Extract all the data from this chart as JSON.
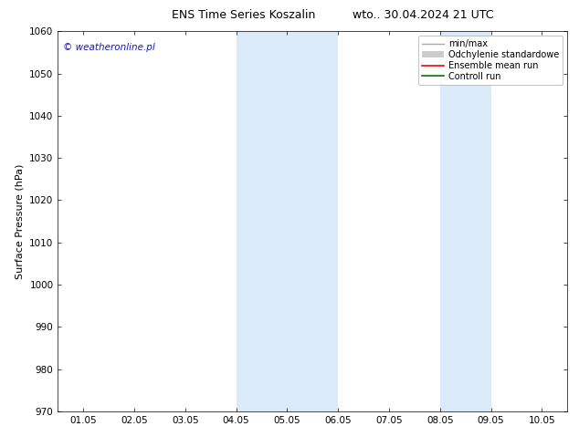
{
  "title_left": "ENS Time Series Koszalin",
  "title_right": "wto.. 30.04.2024 21 UTC",
  "ylabel": "Surface Pressure (hPa)",
  "ylim": [
    970,
    1060
  ],
  "yticks": [
    970,
    980,
    990,
    1000,
    1010,
    1020,
    1030,
    1040,
    1050,
    1060
  ],
  "xtick_labels": [
    "01.05",
    "02.05",
    "03.05",
    "04.05",
    "05.05",
    "06.05",
    "07.05",
    "08.05",
    "09.05",
    "10.05"
  ],
  "xtick_positions": [
    0,
    1,
    2,
    3,
    4,
    5,
    6,
    7,
    8,
    9
  ],
  "shade_bands": [
    {
      "xmin": 3.0,
      "xmax": 5.0
    },
    {
      "xmin": 7.0,
      "xmax": 8.0
    }
  ],
  "shade_color": "#daeaf8",
  "watermark": "© weatheronline.pl",
  "watermark_color": "#1515cc",
  "legend_labels": [
    "min/max",
    "Odchylenie standardowe",
    "Ensemble mean run",
    "Controll run"
  ],
  "legend_colors": [
    "#aaaaaa",
    "#cccccc",
    "#ff0000",
    "#007700"
  ],
  "background_color": "#ffffff",
  "title_fontsize": 9,
  "axis_label_fontsize": 8,
  "tick_fontsize": 7.5,
  "legend_fontsize": 7
}
